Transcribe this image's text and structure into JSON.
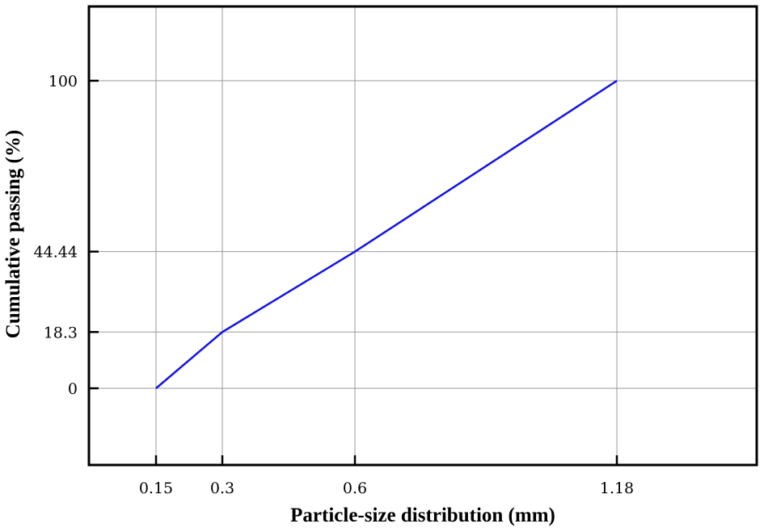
{
  "chart_data": {
    "type": "line",
    "xlabel": "Particle-size distribution (mm)",
    "ylabel": "Cumulative passing (%)",
    "x_ticks": [
      "0.15",
      "0.3",
      "0.6",
      "1.18"
    ],
    "y_ticks": [
      "0",
      "18.3",
      "44.44",
      "100"
    ],
    "series": [
      {
        "x": [
          0.15,
          0.3,
          0.6,
          1.18
        ],
        "y": [
          0,
          18.3,
          44.44,
          100
        ],
        "color": "#1414e6"
      }
    ],
    "grid": true,
    "x_scale": "categorical-by-sieve (unequal spacing as shown)"
  }
}
